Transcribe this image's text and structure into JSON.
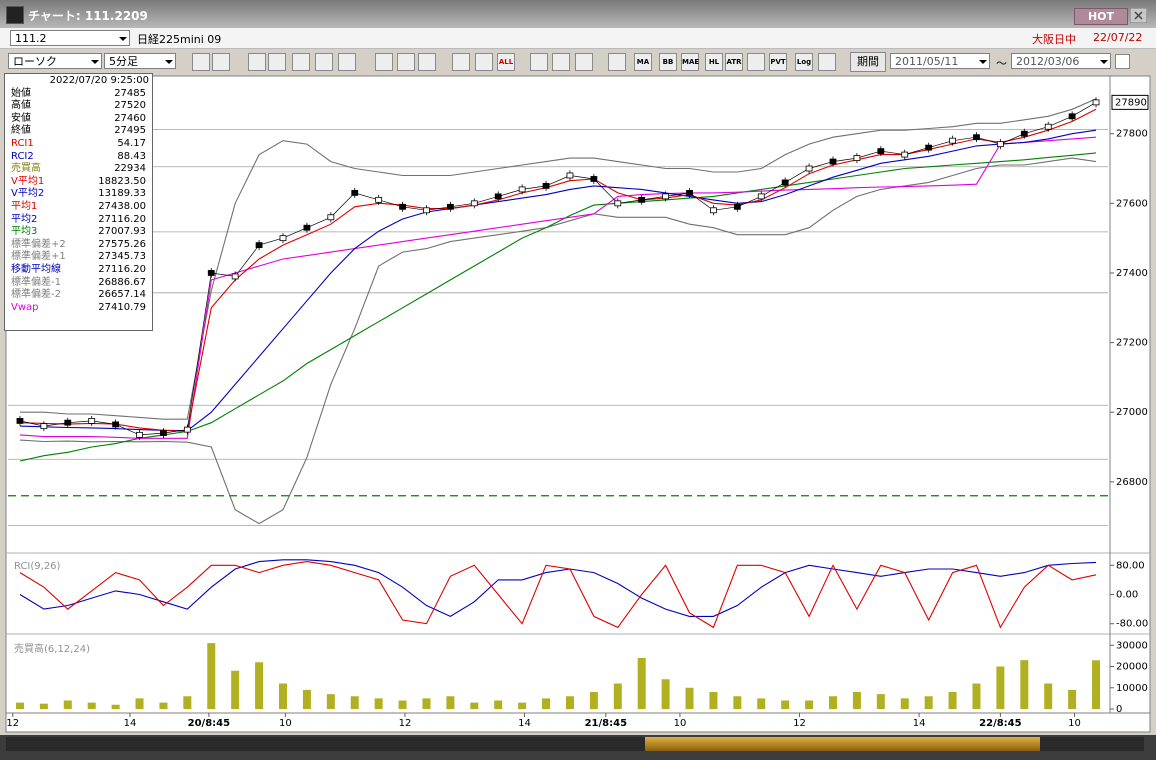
{
  "window": {
    "title": "チャート: 111.2209",
    "hot": "HOT"
  },
  "toolbar": {
    "code": "111.2",
    "name": "日経225mini 09",
    "market": "大阪日中",
    "date": "22/07/22",
    "chart_type": "ローソク",
    "interval": "5分足",
    "buttons": [
      "ALL",
      "MA",
      "BB",
      "MAE",
      "HL",
      "ATR",
      "PVT",
      "Log"
    ],
    "period_label": "期間",
    "from": "2011/05/11",
    "separator": "〜",
    "to": "2012/03/06"
  },
  "info_panel": {
    "datetime": "2022/07/20 9:25:00",
    "rows": [
      {
        "label": "始値",
        "value": "27485",
        "color": "#000000"
      },
      {
        "label": "高値",
        "value": "27520",
        "color": "#000000"
      },
      {
        "label": "安値",
        "value": "27460",
        "color": "#000000"
      },
      {
        "label": "終値",
        "value": "27495",
        "color": "#000000"
      },
      {
        "label": "RCI1",
        "value": "54.17",
        "color": "#e00000"
      },
      {
        "label": "RCI2",
        "value": "88.43",
        "color": "#0000c0"
      },
      {
        "label": "売買高",
        "value": "22934",
        "color": "#808000"
      },
      {
        "label": "V平均1",
        "value": "18823.50",
        "color": "#e00000"
      },
      {
        "label": "V平均2",
        "value": "13189.33",
        "color": "#0000c0"
      },
      {
        "label": "平均1",
        "value": "27438.00",
        "color": "#e00000"
      },
      {
        "label": "平均2",
        "value": "27116.20",
        "color": "#0000c0"
      },
      {
        "label": "平均3",
        "value": "27007.93",
        "color": "#008000"
      },
      {
        "label": "標準偏差+2",
        "value": "27575.26",
        "color": "#808080"
      },
      {
        "label": "標準偏差+1",
        "value": "27345.73",
        "color": "#808080"
      },
      {
        "label": "移動平均線",
        "value": "27116.20",
        "color": "#0000c0"
      },
      {
        "label": "標準偏差-1",
        "value": "26886.67",
        "color": "#808080"
      },
      {
        "label": "標準偏差-2",
        "value": "26657.14",
        "color": "#808080"
      },
      {
        "label": "Vwap",
        "value": "27410.79",
        "color": "#e000e0"
      }
    ]
  },
  "chart_data": [
    {
      "type": "line",
      "xlim": [
        -0.5,
        45.5
      ],
      "ylim": [
        26610,
        27960
      ],
      "yticks": [
        26800,
        27000,
        27200,
        27400,
        27600,
        27800
      ],
      "hlines": [
        {
          "value": 27812,
          "color": "#a0a0a0",
          "dashed": false
        },
        {
          "value": 27705,
          "color": "#a0a0a0",
          "dashed": false
        },
        {
          "value": 27518,
          "color": "#a0a0a0",
          "dashed": false
        },
        {
          "value": 27343,
          "color": "#a0a0a0",
          "dashed": false
        },
        {
          "value": 27020,
          "color": "#a0a0a0",
          "dashed": false
        },
        {
          "value": 26865,
          "color": "#a0a0a0",
          "dashed": false
        },
        {
          "value": 26675,
          "color": "#a0a0a0",
          "dashed": false
        },
        {
          "value": 26760,
          "color": "#008000",
          "dashed": true
        }
      ],
      "series": [
        {
          "color": "#707070",
          "values": [
            27000,
            27000,
            26995,
            26995,
            26990,
            26985,
            26980,
            26980,
            27350,
            27600,
            27740,
            27780,
            27770,
            27720,
            27700,
            27690,
            27680,
            27680,
            27680,
            27690,
            27700,
            27710,
            27720,
            27730,
            27730,
            27720,
            27710,
            27700,
            27700,
            27690,
            27690,
            27700,
            27740,
            27770,
            27790,
            27800,
            27810,
            27810,
            27815,
            27820,
            27830,
            27830,
            27840,
            27850,
            27870,
            27900
          ]
        },
        {
          "color": "#707070",
          "values": [
            26920,
            26916,
            26917,
            26915,
            26916,
            26915,
            26916,
            26914,
            26900,
            26720,
            26680,
            26720,
            26870,
            27080,
            27240,
            27420,
            27460,
            27470,
            27490,
            27500,
            27510,
            27520,
            27530,
            27550,
            27570,
            27560,
            27560,
            27560,
            27540,
            27530,
            27510,
            27510,
            27510,
            27530,
            27580,
            27620,
            27640,
            27650,
            27660,
            27680,
            27700,
            27710,
            27710,
            27720,
            27730,
            27720
          ]
        },
        {
          "color": "#008000",
          "values": [
            26860,
            26875,
            26885,
            26900,
            26910,
            26925,
            26935,
            26945,
            26970,
            27010,
            27050,
            27090,
            27140,
            27180,
            27220,
            27260,
            27300,
            27340,
            27380,
            27420,
            27460,
            27500,
            27530,
            27565,
            27595,
            27600,
            27605,
            27610,
            27615,
            27620,
            27630,
            27640,
            27650,
            27660,
            27670,
            27680,
            27690,
            27700,
            27705,
            27710,
            27715,
            27720,
            27725,
            27732,
            27738,
            27745
          ]
        },
        {
          "color": "#e000e0",
          "values": [
            26935,
            26930,
            26930,
            26930,
            26928,
            26925,
            26925,
            26925,
            27380,
            27400,
            27420,
            27440,
            27450,
            27460,
            27470,
            27480,
            27490,
            27500,
            27510,
            27520,
            27530,
            27540,
            27550,
            27560,
            27570,
            27620,
            27625,
            27628,
            27630,
            27630,
            27632,
            27635,
            27638,
            27640,
            27642,
            27645,
            27647,
            27648,
            27650,
            27652,
            27655,
            27770,
            27775,
            27780,
            27785,
            27790
          ]
        },
        {
          "color": "#0000c0",
          "values": [
            26960,
            26958,
            26956,
            26955,
            26953,
            26950,
            26948,
            26947,
            27000,
            27080,
            27160,
            27240,
            27320,
            27400,
            27470,
            27520,
            27555,
            27575,
            27585,
            27595,
            27605,
            27615,
            27625,
            27640,
            27650,
            27645,
            27640,
            27630,
            27620,
            27610,
            27600,
            27605,
            27625,
            27650,
            27675,
            27695,
            27715,
            27725,
            27735,
            27750,
            27765,
            27770,
            27775,
            27785,
            27800,
            27810
          ]
        },
        {
          "color": "#e00000",
          "values": [
            26970,
            26968,
            26966,
            26968,
            26966,
            26955,
            26948,
            26945,
            27300,
            27380,
            27440,
            27480,
            27510,
            27540,
            27590,
            27600,
            27595,
            27585,
            27585,
            27595,
            27610,
            27630,
            27645,
            27665,
            27670,
            27630,
            27610,
            27615,
            27625,
            27600,
            27595,
            27610,
            27645,
            27685,
            27710,
            27725,
            27740,
            27740,
            27755,
            27770,
            27785,
            27775,
            27790,
            27810,
            27835,
            27870
          ]
        },
        {
          "color": "#000000",
          "style": "candle",
          "values": [
            26975,
            26960,
            26970,
            26975,
            26965,
            26935,
            26940,
            26950,
            27400,
            27390,
            27480,
            27500,
            27530,
            27560,
            27630,
            27610,
            27590,
            27580,
            27590,
            27600,
            27620,
            27640,
            27650,
            27680,
            27670,
            27600,
            27610,
            27620,
            27630,
            27580,
            27590,
            27620,
            27660,
            27700,
            27720,
            27730,
            27750,
            27740,
            27760,
            27780,
            27790,
            27770,
            27800,
            27820,
            27850,
            27890
          ]
        }
      ]
    },
    {
      "type": "line",
      "title": "RCI(9,26)",
      "xlim": [
        -0.5,
        45.5
      ],
      "ylim": [
        -100,
        100
      ],
      "yticks": [
        {
          "value": 80,
          "label": "80.00"
        },
        {
          "value": 0,
          "label": "0.00"
        },
        {
          "value": -80,
          "label": "-80.00"
        }
      ],
      "series": [
        {
          "color": "#0000c0",
          "values": [
            0,
            -40,
            -30,
            -10,
            10,
            0,
            -20,
            -40,
            20,
            70,
            90,
            95,
            95,
            90,
            80,
            60,
            20,
            -30,
            -60,
            -20,
            40,
            40,
            60,
            70,
            60,
            30,
            -10,
            -40,
            -60,
            -60,
            -30,
            20,
            60,
            80,
            70,
            60,
            50,
            60,
            70,
            70,
            60,
            50,
            60,
            80,
            85,
            88
          ]
        },
        {
          "color": "#e00000",
          "values": [
            60,
            20,
            -40,
            10,
            60,
            40,
            -30,
            20,
            80,
            80,
            60,
            80,
            90,
            80,
            60,
            40,
            -70,
            -80,
            50,
            80,
            0,
            -80,
            80,
            70,
            -60,
            -90,
            0,
            80,
            -50,
            -90,
            80,
            80,
            60,
            -60,
            80,
            -40,
            80,
            60,
            -70,
            60,
            80,
            -90,
            20,
            80,
            40,
            54
          ]
        }
      ]
    },
    {
      "type": "bar",
      "title": "売買高(6,12,24)",
      "xlim": [
        -0.5,
        45.5
      ],
      "ylim": [
        0,
        32000
      ],
      "yticks": [
        0,
        10000,
        20000,
        30000
      ],
      "xticks": [
        {
          "value": -0.3,
          "label": "12"
        },
        {
          "value": 4.6,
          "label": "14"
        },
        {
          "value": 7.9,
          "label": "20/8:45"
        },
        {
          "value": 11.1,
          "label": "10"
        },
        {
          "value": 16.1,
          "label": "12"
        },
        {
          "value": 21.1,
          "label": "14"
        },
        {
          "value": 24.5,
          "label": "21/8:45"
        },
        {
          "value": 27.6,
          "label": "10"
        },
        {
          "value": 32.6,
          "label": "12"
        },
        {
          "value": 37.6,
          "label": "14"
        },
        {
          "value": 41,
          "label": "22/8:45"
        },
        {
          "value": 44.1,
          "label": "10"
        }
      ],
      "series": [
        {
          "color": "#b0b020",
          "values": [
            3000,
            2500,
            4000,
            3000,
            2000,
            5000,
            3000,
            6000,
            31000,
            18000,
            22000,
            12000,
            9000,
            7000,
            6000,
            5000,
            4000,
            5000,
            6000,
            3000,
            4000,
            3000,
            5000,
            6000,
            8000,
            12000,
            24000,
            14000,
            10000,
            8000,
            6000,
            5000,
            4000,
            4000,
            6000,
            8000,
            7000,
            5000,
            6000,
            8000,
            12000,
            20000,
            23000,
            12000,
            9000,
            22934
          ]
        }
      ]
    }
  ]
}
